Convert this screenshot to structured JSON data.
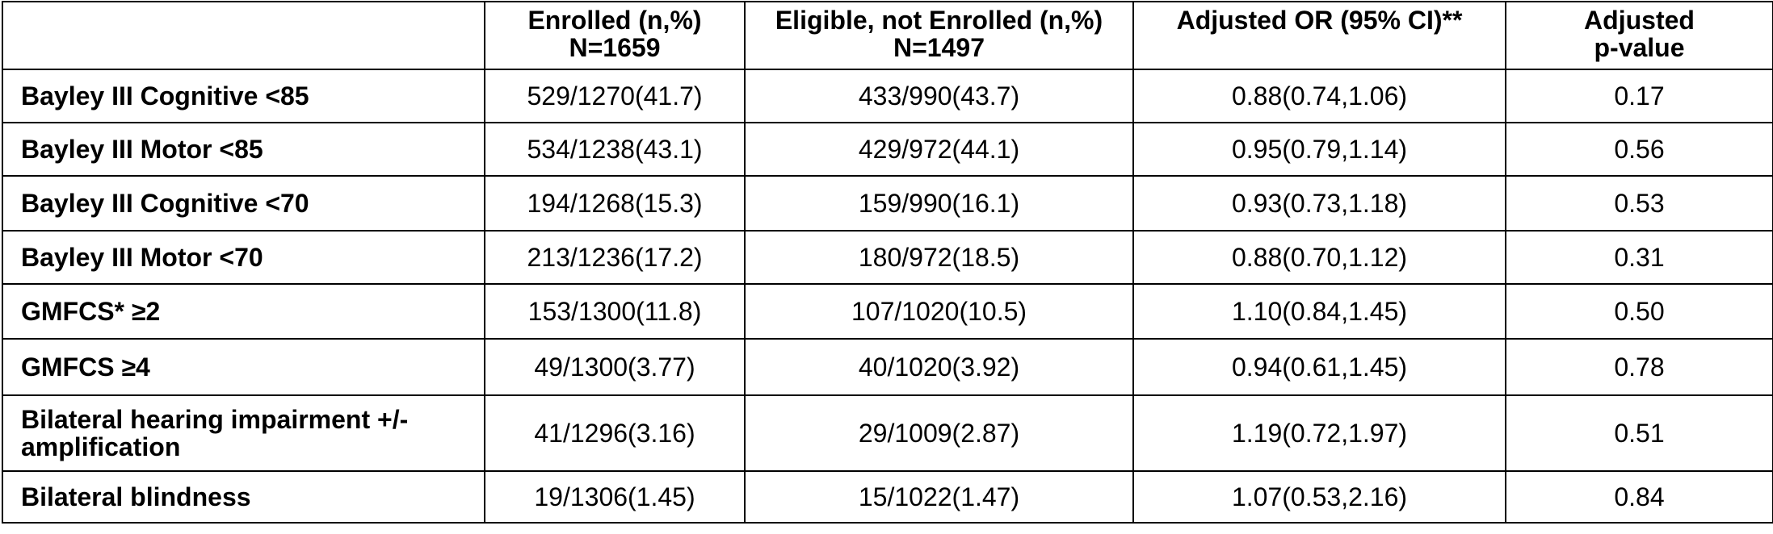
{
  "table": {
    "columns": [
      {
        "line1": "",
        "line2": ""
      },
      {
        "line1": "Enrolled (n,%)",
        "line2": "N=1659"
      },
      {
        "line1": "Eligible, not Enrolled (n,%)",
        "line2": "N=1497"
      },
      {
        "line1": "Adjusted OR (95% CI)**",
        "line2": ""
      },
      {
        "line1": "Adjusted",
        "line2": "p-value"
      }
    ],
    "rows": [
      {
        "outcome": "Bayley III Cognitive <85",
        "enrolled": "529/1270(41.7)",
        "not_enrolled": "433/990(43.7)",
        "adjusted_or": "0.88(0.74,1.06)",
        "p_value": "0.17"
      },
      {
        "outcome": "Bayley III Motor <85",
        "enrolled": "534/1238(43.1)",
        "not_enrolled": "429/972(44.1)",
        "adjusted_or": "0.95(0.79,1.14)",
        "p_value": "0.56"
      },
      {
        "outcome": "Bayley III Cognitive <70",
        "enrolled": "194/1268(15.3)",
        "not_enrolled": "159/990(16.1)",
        "adjusted_or": "0.93(0.73,1.18)",
        "p_value": "0.53"
      },
      {
        "outcome": "Bayley III Motor <70",
        "enrolled": "213/1236(17.2)",
        "not_enrolled": "180/972(18.5)",
        "adjusted_or": "0.88(0.70,1.12)",
        "p_value": "0.31"
      },
      {
        "outcome": "GMFCS* ≥2",
        "enrolled": "153/1300(11.8)",
        "not_enrolled": "107/1020(10.5)",
        "adjusted_or": "1.10(0.84,1.45)",
        "p_value": "0.50"
      },
      {
        "outcome": "GMFCS ≥4",
        "enrolled": "49/1300(3.77)",
        "not_enrolled": "40/1020(3.92)",
        "adjusted_or": "0.94(0.61,1.45)",
        "p_value": "0.78"
      },
      {
        "outcome": "Bilateral hearing impairment +/- amplification",
        "enrolled": "41/1296(3.16)",
        "not_enrolled": "29/1009(2.87)",
        "adjusted_or": "1.19(0.72,1.97)",
        "p_value": "0.51"
      },
      {
        "outcome": "Bilateral blindness",
        "enrolled": "19/1306(1.45)",
        "not_enrolled": "15/1022(1.47)",
        "adjusted_or": "1.07(0.53,2.16)",
        "p_value": "0.84"
      }
    ]
  }
}
